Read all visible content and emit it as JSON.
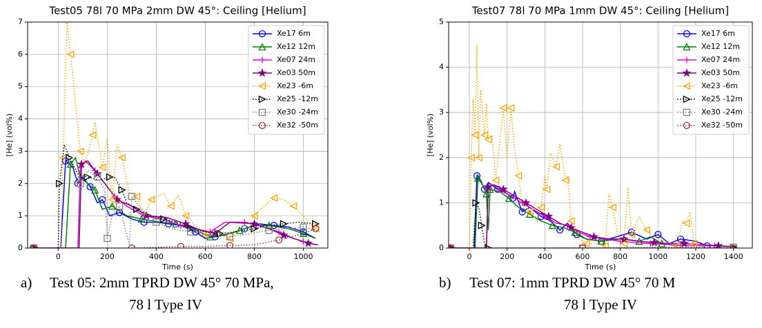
{
  "chart_data": [
    {
      "type": "line",
      "title": "Test05 78l 70 MPa 2mm DW 45°: Ceiling [Helium]",
      "x_label": "Time (s)",
      "y_label": "[He] (vol%)",
      "caption_label": "a)",
      "caption": [
        "Test 05: 2mm TPRD DW 45° 70 MPa,",
        "78 l Type IV"
      ],
      "xlim": [
        -125,
        1100
      ],
      "ylim": [
        0,
        7
      ],
      "xticks": [
        0,
        200,
        400,
        600,
        800,
        1000
      ],
      "yticks": [
        0,
        1,
        2,
        3,
        4,
        5,
        6,
        7
      ],
      "grid": true,
      "legend": "upper right",
      "series": [
        {
          "name": "Xe17 6m",
          "color": "#0000ff",
          "marker": "o",
          "linestyle": "solid",
          "x": [
            -100,
            10,
            30,
            60,
            80,
            100,
            130,
            160,
            180,
            210,
            250,
            300,
            350,
            400,
            450,
            500,
            560,
            600,
            640,
            700,
            760,
            820,
            880,
            940,
            1000,
            1050
          ],
          "values": [
            0,
            0,
            2.7,
            2.5,
            2.0,
            2.2,
            1.9,
            1.4,
            1.5,
            1.0,
            1.1,
            0.9,
            0.8,
            0.8,
            0.75,
            0.7,
            0.5,
            0.3,
            0.35,
            0.45,
            0.6,
            0.75,
            0.7,
            0.65,
            0.5,
            0.3
          ]
        },
        {
          "name": "Xe12 12m",
          "color": "#008000",
          "marker": "^",
          "linestyle": "solid",
          "x": [
            -100,
            30,
            50,
            70,
            90,
            120,
            150,
            180,
            220,
            280,
            340,
            420,
            480,
            560,
            620,
            680,
            740,
            800,
            860,
            940,
            1000,
            1050
          ],
          "values": [
            0,
            0,
            2.6,
            2.8,
            2.2,
            2.0,
            1.8,
            1.2,
            1.3,
            1.0,
            0.9,
            0.8,
            0.75,
            0.55,
            0.35,
            0.4,
            0.55,
            0.7,
            0.7,
            0.6,
            0.45,
            0.3
          ]
        },
        {
          "name": "Xe07 24m",
          "color": "#e000e0",
          "marker": "+",
          "linestyle": "solid",
          "x": [
            -100,
            80,
            90,
            110,
            150,
            190,
            230,
            280,
            350,
            420,
            500,
            560,
            620,
            680,
            760,
            840,
            900,
            960,
            1000,
            1050
          ],
          "values": [
            0,
            0,
            2.5,
            2.7,
            2.4,
            2.0,
            1.6,
            1.3,
            1.0,
            0.9,
            0.7,
            0.6,
            0.5,
            0.8,
            0.8,
            0.65,
            0.5,
            0.3,
            0.2,
            0.1
          ]
        },
        {
          "name": "Xe03 50m",
          "color": "#800080",
          "marker": "*",
          "linestyle": "solid",
          "x": [
            -100,
            85,
            95,
            120,
            160,
            200,
            240,
            300,
            360,
            440,
            520,
            580,
            640,
            700,
            800,
            860,
            920,
            980,
            1020,
            1060
          ],
          "values": [
            0,
            0,
            2.6,
            2.7,
            2.3,
            1.9,
            1.5,
            1.3,
            1.0,
            0.95,
            0.75,
            0.55,
            0.45,
            0.8,
            0.75,
            0.6,
            0.4,
            0.25,
            0.15,
            0.1
          ]
        },
        {
          "name": "Xe23 -6m",
          "color": "#ffa500",
          "marker": "<",
          "linestyle": "dotted",
          "x": [
            -100,
            10,
            20,
            35,
            50,
            70,
            90,
            110,
            140,
            150,
            180,
            200,
            220,
            240,
            260,
            290,
            320,
            350,
            380,
            430,
            460,
            490,
            520,
            560,
            600,
            650,
            700,
            760,
            800,
            840,
            880,
            920,
            960,
            1000,
            1050
          ],
          "values": [
            0,
            0,
            2.8,
            7.0,
            6.0,
            4.5,
            3.0,
            2.6,
            3.5,
            3.9,
            2.5,
            3.4,
            1.5,
            3.2,
            2.8,
            1.7,
            1.6,
            1.0,
            1.5,
            1.7,
            1.3,
            1.65,
            1.0,
            0.7,
            0.4,
            0.5,
            0.3,
            0.7,
            1.0,
            1.3,
            1.55,
            1.5,
            1.3,
            1.0,
            0.6
          ]
        },
        {
          "name": "Xe25 -12m",
          "color": "#000000",
          "marker": ">",
          "linestyle": "dotted",
          "x": [
            -100,
            0,
            5,
            25,
            45,
            80,
            120,
            170,
            210,
            230,
            260,
            280,
            320,
            380,
            430,
            480,
            540,
            600,
            660,
            720,
            800,
            860,
            920,
            980,
            1050
          ],
          "values": [
            0,
            0,
            2.0,
            3.2,
            2.8,
            2.3,
            2.2,
            2.1,
            2.2,
            2.2,
            1.8,
            1.4,
            1.2,
            1.0,
            0.9,
            0.8,
            0.6,
            0.5,
            0.45,
            0.5,
            0.6,
            0.7,
            0.75,
            0.8,
            0.75
          ]
        },
        {
          "name": "Xe30 -24m",
          "color": "#808080",
          "marker": "s",
          "linestyle": "dotted",
          "x": [
            -100,
            80,
            90,
            120,
            160,
            190,
            200,
            220,
            250,
            290,
            300,
            340,
            400,
            460,
            540,
            620,
            700,
            780,
            860,
            940,
            1000,
            1050
          ],
          "values": [
            0,
            0,
            2.0,
            2.4,
            2.2,
            1.8,
            0.3,
            1.0,
            1.3,
            0.1,
            1.6,
            1.2,
            0.8,
            0.6,
            0.5,
            0.4,
            0.35,
            0.45,
            0.55,
            0.6,
            0.65,
            0.55
          ]
        },
        {
          "name": "Xe32 -50m",
          "color": "#a52a2a",
          "marker": "o",
          "linestyle": "dotted",
          "x": [
            -100,
            100,
            300,
            400,
            500,
            600,
            700,
            800,
            900,
            1000,
            1050
          ],
          "values": [
            0,
            0,
            0,
            0.02,
            0.05,
            0.05,
            0.08,
            0.1,
            0.25,
            0.45,
            0.6
          ]
        }
      ]
    },
    {
      "type": "line",
      "title": "Test07 78l 70 MPa 1mm DW 45°: Ceiling [Helium]",
      "x_label": "Time (s)",
      "y_label": "[He] (vol%)",
      "caption_label": "b)",
      "caption": [
        "Test 07: 1mm TPRD DW 45° 70 M",
        "78 l Type IV"
      ],
      "xlim": [
        -110,
        1500
      ],
      "ylim": [
        0,
        5
      ],
      "xticks": [
        0,
        200,
        400,
        600,
        800,
        1000,
        1200,
        1400
      ],
      "yticks": [
        0,
        1,
        2,
        3,
        4,
        5
      ],
      "grid": true,
      "legend": "upper right",
      "series": [
        {
          "name": "Xe17 6m",
          "color": "#0000ff",
          "marker": "o",
          "linestyle": "solid",
          "x": [
            -100,
            25,
            40,
            60,
            80,
            100,
            150,
            200,
            230,
            240,
            280,
            320,
            380,
            430,
            480,
            520,
            570,
            620,
            700,
            780,
            860,
            940,
            1000,
            1060,
            1120,
            1200,
            1260
          ],
          "values": [
            0,
            0,
            1.6,
            1.5,
            1.3,
            1.45,
            1.3,
            1.2,
            1.1,
            1.25,
            0.8,
            0.9,
            0.7,
            0.6,
            0.4,
            0.55,
            0.3,
            0.2,
            0.15,
            0.25,
            0.35,
            0.2,
            0.3,
            0.1,
            0.2,
            0.15,
            0.05
          ]
        },
        {
          "name": "Xe12 12m",
          "color": "#008000",
          "marker": "^",
          "linestyle": "solid",
          "x": [
            -100,
            30,
            45,
            70,
            90,
            100,
            110,
            160,
            210,
            260,
            320,
            380,
            440,
            500,
            560,
            620,
            700,
            800,
            900,
            960,
            1020,
            1100
          ],
          "values": [
            0,
            0,
            1.55,
            1.4,
            1.2,
            0.4,
            1.3,
            1.25,
            1.1,
            0.9,
            0.75,
            0.6,
            0.5,
            0.45,
            0.35,
            0.2,
            0.15,
            0.2,
            0.15,
            0.25,
            0.1,
            0.05
          ]
        },
        {
          "name": "Xe07 24m",
          "color": "#e000e0",
          "marker": "+",
          "linestyle": "solid",
          "x": [
            -100,
            90,
            100,
            120,
            160,
            220,
            280,
            340,
            400,
            460,
            520,
            580,
            640,
            720,
            800,
            880,
            960,
            1040,
            1120,
            1200,
            1300,
            1400
          ],
          "values": [
            0,
            0,
            1.3,
            1.4,
            1.3,
            1.15,
            1.0,
            0.85,
            0.7,
            0.55,
            0.5,
            0.35,
            0.25,
            0.2,
            0.15,
            0.12,
            0.1,
            0.08,
            0.06,
            0.05,
            0.05,
            0.03
          ]
        },
        {
          "name": "Xe03 50m",
          "color": "#800080",
          "marker": "*",
          "linestyle": "solid",
          "x": [
            -100,
            90,
            100,
            130,
            180,
            240,
            300,
            360,
            420,
            480,
            540,
            600,
            660,
            740,
            820,
            900,
            980,
            1060,
            1140,
            1220,
            1320,
            1420
          ],
          "values": [
            0,
            0,
            1.35,
            1.4,
            1.3,
            1.15,
            1.0,
            0.85,
            0.7,
            0.55,
            0.45,
            0.35,
            0.25,
            0.2,
            0.2,
            0.15,
            0.12,
            0.1,
            0.1,
            0.08,
            0.05,
            0.03
          ]
        },
        {
          "name": "Xe23 -6m",
          "color": "#ffa500",
          "marker": "<",
          "linestyle": "dotted",
          "x": [
            -100,
            0,
            10,
            20,
            30,
            40,
            50,
            60,
            80,
            90,
            100,
            120,
            140,
            160,
            180,
            200,
            220,
            240,
            260,
            280,
            320,
            360,
            380,
            400,
            410,
            430,
            460,
            480,
            510,
            520,
            540,
            580,
            620,
            680,
            720,
            740,
            760,
            790,
            820,
            840,
            860,
            900,
            940,
            1000,
            1100,
            1130,
            1150,
            1170,
            1190,
            1250
          ],
          "values": [
            0,
            0,
            2.0,
            3.3,
            2.5,
            4.5,
            2.0,
            3.5,
            2.5,
            3.2,
            2.4,
            2.5,
            1.5,
            2.3,
            3.1,
            2.0,
            3.1,
            2.2,
            1.6,
            1.0,
            0.8,
            0.6,
            0.9,
            1.6,
            1.3,
            2.1,
            1.8,
            2.3,
            1.5,
            1.6,
            0.6,
            0.2,
            0.1,
            0.1,
            0.05,
            1.2,
            0.9,
            0.2,
            0.1,
            1.35,
            0.3,
            0.7,
            0.4,
            0.2,
            0.05,
            0.6,
            0.55,
            0.8,
            0.1,
            0.05
          ]
        },
        {
          "name": "Xe25 -12m",
          "color": "#000000",
          "marker": ">",
          "linestyle": "dotted",
          "x": [
            -100,
            20,
            35,
            50,
            65,
            80,
            100,
            600,
            1400
          ],
          "values": [
            0,
            0,
            1.0,
            0.9,
            0.5,
            0.1,
            0,
            0,
            0
          ]
        },
        {
          "name": "Xe30 -24m",
          "color": "#808080",
          "marker": "s",
          "linestyle": "dotted",
          "x": [
            -100,
            200,
            600,
            1000,
            1400
          ],
          "values": [
            0,
            0,
            0,
            0.02,
            0.02
          ]
        },
        {
          "name": "Xe32 -50m",
          "color": "#a52a2a",
          "marker": "o",
          "linestyle": "dotted",
          "x": [
            -100,
            200,
            600,
            1000,
            1400
          ],
          "values": [
            0,
            0,
            0,
            0,
            0
          ]
        }
      ]
    }
  ]
}
